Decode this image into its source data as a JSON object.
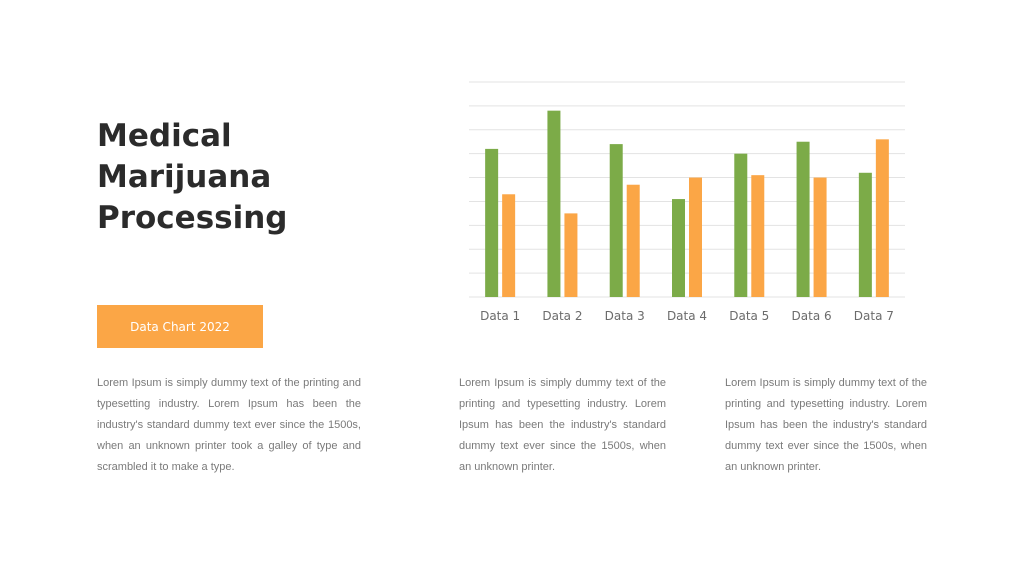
{
  "title": "Medical\nMarijuana\nProcessing",
  "badge": "Data Chart 2022",
  "paragraphs": [
    "Lorem Ipsum is simply dummy text of the printing and typesetting industry.  Lorem Ipsum has been the industry's standard dummy text ever since the 1500s, when an unknown printer took a galley of type and scrambled it to make a type.",
    "Lorem Ipsum is simply dummy text of the printing and typesetting industry.  Lorem Ipsum has been the industry's standard dummy text ever since the 1500s,  when an unknown printer.",
    "Lorem Ipsum is simply dummy text of the printing and typesetting industry. Lorem Ipsum has been the industry's standard dummy text ever since the 1500s,  when an unknown printer."
  ],
  "colors": {
    "series_1": "#7cab48",
    "series_2": "#fba646",
    "title": "#2b2b2b",
    "body_text": "#7a7a7a",
    "gridline": "#e3e3e3"
  },
  "chart_data": {
    "type": "bar",
    "categories": [
      "Data 1",
      "Data 2",
      "Data 3",
      "Data 4",
      "Data 5",
      "Data 6",
      "Data 7"
    ],
    "series": [
      {
        "values": [
          6.2,
          7.8,
          6.4,
          4.1,
          6.0,
          6.5,
          5.2
        ],
        "color": "#7cab48"
      },
      {
        "values": [
          4.3,
          3.5,
          4.7,
          5.0,
          5.1,
          5.0,
          6.6
        ],
        "color": "#fba646"
      }
    ],
    "ylim": [
      0,
      9
    ],
    "grid": true,
    "legend": "none"
  }
}
